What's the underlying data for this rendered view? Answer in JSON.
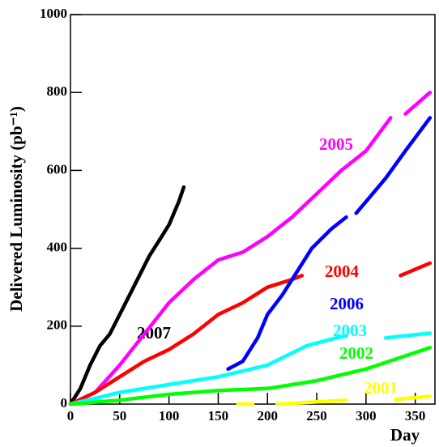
{
  "chart_data": {
    "type": "line",
    "x_label": "Day",
    "y_label": "Delivered Luminosity (pb⁻¹)",
    "xlim": [
      0,
      370
    ],
    "ylim": [
      0,
      1000
    ],
    "xticks": [
      0,
      50,
      100,
      150,
      200,
      250,
      300,
      350
    ],
    "yticks": [
      0,
      200,
      400,
      600,
      800,
      1000
    ],
    "series": [
      {
        "name": "2007",
        "color": "#000000",
        "x": [
          0,
          10,
          20,
          30,
          40,
          50,
          60,
          70,
          80,
          90,
          100,
          110,
          115
        ],
        "values": [
          0,
          40,
          100,
          150,
          180,
          230,
          280,
          330,
          380,
          420,
          460,
          520,
          557
        ]
      },
      {
        "name": "2005",
        "color": "#ff00ff",
        "x": [
          0,
          25,
          50,
          75,
          100,
          125,
          150,
          175,
          200,
          225,
          250,
          275,
          300,
          325,
          332,
          340,
          365
        ],
        "values": [
          0,
          30,
          100,
          180,
          260,
          320,
          370,
          390,
          430,
          480,
          540,
          600,
          650,
          735,
          null,
          745,
          800
        ]
      },
      {
        "name": "2004",
        "color": "#ff0000",
        "x": [
          0,
          25,
          50,
          75,
          100,
          125,
          150,
          175,
          200,
          225,
          235,
          285,
          335,
          365
        ],
        "values": [
          0,
          30,
          70,
          110,
          140,
          180,
          230,
          260,
          300,
          320,
          330,
          null,
          330,
          362
        ]
      },
      {
        "name": "2006",
        "color": "#0000ff",
        "x": [
          160,
          175,
          190,
          200,
          215,
          230,
          245,
          265,
          280,
          285,
          290,
          300,
          320,
          340,
          365
        ],
        "values": [
          90,
          110,
          170,
          230,
          280,
          340,
          400,
          450,
          480,
          null,
          490,
          520,
          580,
          650,
          735
        ]
      },
      {
        "name": "2003",
        "color": "#00ffff",
        "x": [
          0,
          50,
          100,
          150,
          200,
          240,
          270,
          280,
          300,
          320,
          365
        ],
        "values": [
          0,
          30,
          50,
          70,
          100,
          150,
          170,
          175,
          null,
          170,
          182
        ]
      },
      {
        "name": "2002",
        "color": "#00ff00",
        "x": [
          0,
          50,
          100,
          150,
          200,
          250,
          300,
          365
        ],
        "values": [
          0,
          10,
          25,
          35,
          40,
          60,
          90,
          145
        ]
      },
      {
        "name": "2001",
        "color": "#ffff00",
        "x": [
          170,
          185,
          198,
          210,
          280,
          305,
          330,
          365
        ],
        "values": [
          0,
          0,
          null,
          0,
          10,
          null,
          12,
          20
        ]
      }
    ]
  }
}
